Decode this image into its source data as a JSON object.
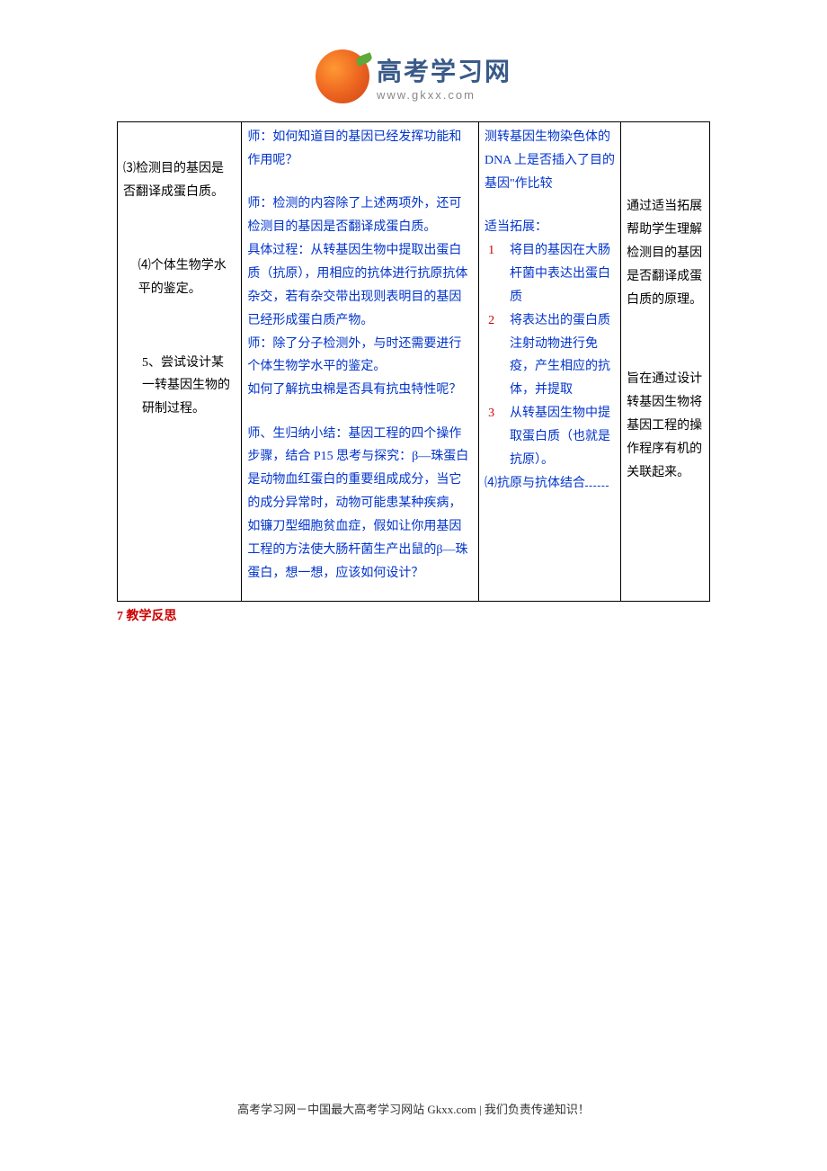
{
  "logo": {
    "title": "高考学习网",
    "url": "www.gkxx.com"
  },
  "table": {
    "col1": {
      "item3": "⑶检测目的基因是否翻译成蛋白质。",
      "item4": "⑷个体生物学水平的鉴定。",
      "item5": "5、尝试设计某一转基因生物的研制过程。"
    },
    "col2": {
      "line1": "师：如何知道目的基因已经发挥功能和作用呢？",
      "line2": "师：检测的内容除了上述两项外，还可检测目的基因是否翻译成蛋白质。",
      "line3": "具体过程：从转基因生物中提取出蛋白质（抗原），用相应的抗体进行抗原抗体杂交，若有杂交带出现则表明目的基因已经形成蛋白质产物。",
      "line4": "师：除了分子检测外，与时还需要进行个体生物学水平的鉴定。",
      "line5": "如何了解抗虫棉是否具有抗虫特性呢？",
      "line6": "师、生归纳小结：基因工程的四个操作步骤，结合 P15 思考与探究：β—珠蛋白是动物血红蛋白的重要组成成分，当它的成分异常时，动物可能患某种疾病，如镰刀型细胞贫血症，假如让你用基因工程的方法使大肠杆菌生产出鼠的β—珠蛋白，想一想，应该如何设计？"
    },
    "col3": {
      "line1": "测转基因生物染色体的 DNA 上是否插入了目的基因\"作比较",
      "extend_label": "适当拓展：",
      "item1": "将目的基因在大肠杆菌中表达出蛋白质",
      "item2": "将表达出的蛋白质注射动物进行免疫，产生相应的抗体，并提取",
      "item3": "从转基因生物中提取蛋白质（也就是抗原）。",
      "item4": "⑷抗原与抗体结合"
    },
    "col4": {
      "para1": "通过适当拓展帮助学生理解检测目的基因是否翻译成蛋白质的原理。",
      "para2": "旨在通过设计转基因生物将基因工程的操作程序有机的关联起来。"
    }
  },
  "section_label": "7 教学反思",
  "footer": "高考学习网－中国最大高考学习网站 Gkxx.com |  我们负责传递知识！",
  "colors": {
    "blue": "#0033cc",
    "red": "#cc0000",
    "black": "#000000",
    "logo_blue": "#3a5a88",
    "logo_orange": "#ee6622"
  }
}
